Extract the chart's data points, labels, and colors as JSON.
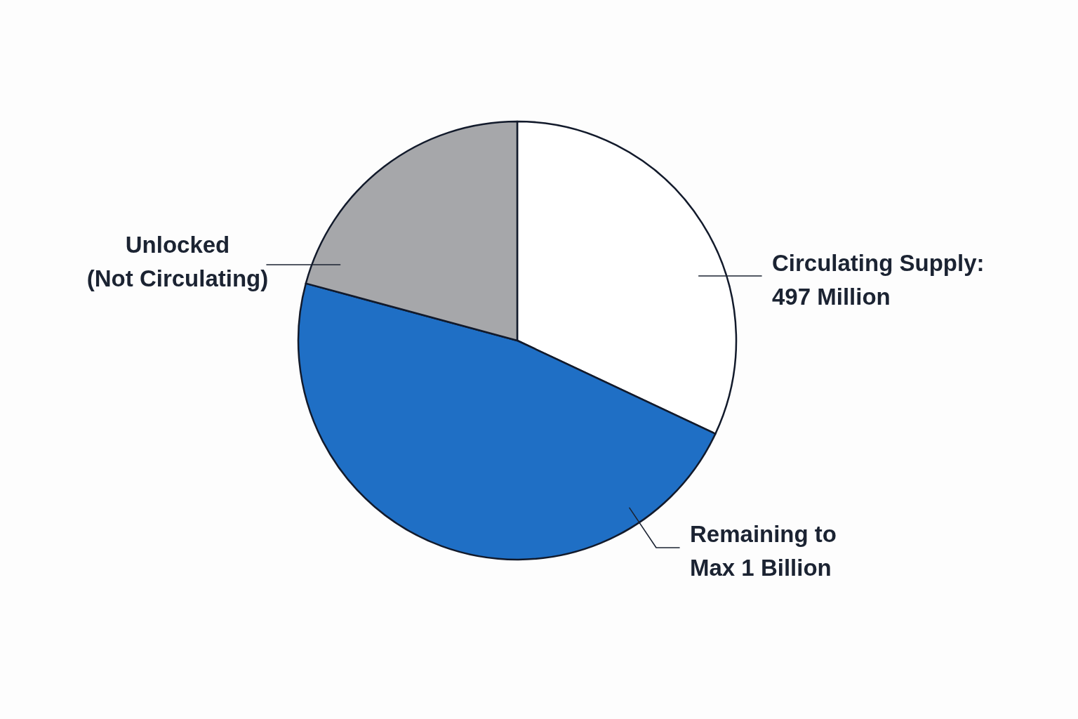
{
  "chart_data": {
    "type": "pie",
    "categories": [
      "Circulating Supply:\n497 Million",
      "Remaining to\nMax 1 Billion",
      "Unlocked\n(Not Circulating)"
    ],
    "values": [
      32.0,
      47.2,
      20.8
    ],
    "colors": [
      "#ffffff",
      "#1f6fc5",
      "#a6a7aa"
    ]
  }
}
